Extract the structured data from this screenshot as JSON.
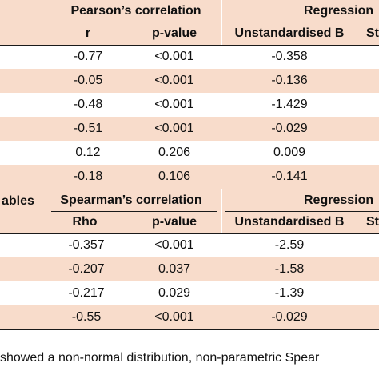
{
  "table1": {
    "group_headers": {
      "pearson": "Pearson’s correlation",
      "regression": "Regression"
    },
    "sub_headers": {
      "r": "r",
      "p_value": "p-value",
      "unstd_b": "Unstandardised B",
      "st": "St"
    },
    "rows": [
      {
        "r": "-0.77",
        "p": "<0.001",
        "b": "-0.358"
      },
      {
        "r": "-0.05",
        "p": "<0.001",
        "b": "-0.136"
      },
      {
        "r": "-0.48",
        "p": "<0.001",
        "b": "-1.429"
      },
      {
        "r": "-0.51",
        "p": "<0.001",
        "b": "-0.029"
      },
      {
        "r": "0.12",
        "p": "0.206",
        "b": "0.009"
      },
      {
        "r": "-0.18",
        "p": "0.106",
        "b": "-0.141"
      }
    ]
  },
  "table2": {
    "group_headers": {
      "variables_fragment": "ables",
      "spearman": "Spearman’s correlation",
      "regression": "Regression"
    },
    "sub_headers": {
      "rho": "Rho",
      "p_value": "p-value",
      "unstd_b": "Unstandardised B",
      "st": "St"
    },
    "rows": [
      {
        "rho": "-0.357",
        "p": "<0.001",
        "b": "-2.59"
      },
      {
        "rho": "-0.207",
        "p": "0.037",
        "b": "-1.58"
      },
      {
        "rho": "-0.217",
        "p": "0.029",
        "b": "-1.39"
      },
      {
        "rho": "-0.55",
        "p": "<0.001",
        "b": "-0.029"
      }
    ]
  },
  "footnote": "showed a non-normal distribution, non-parametric Spear"
}
